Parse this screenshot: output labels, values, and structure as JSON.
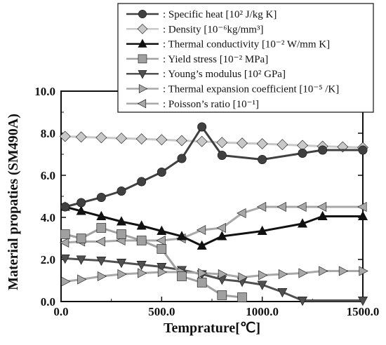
{
  "chart_data": {
    "type": "line",
    "xlabel": "Temprature[℃]",
    "ylabel": "Material propaties (SM490A)",
    "xlim": [
      0,
      1500
    ],
    "ylim": [
      0,
      10
    ],
    "x_ticks": [
      "0.0",
      "500.0",
      "1000.0",
      "1500.0"
    ],
    "y_ticks": [
      "0.0",
      "2.0",
      "4.0",
      "6.0",
      "8.0",
      "10.0"
    ],
    "grid": false,
    "legend_position": "top-right",
    "series": [
      {
        "name": ": Specific heat [10² J/kg K]",
        "marker": "circle",
        "color": "#404040",
        "x": [
          20,
          100,
          200,
          300,
          400,
          500,
          600,
          700,
          800,
          1000,
          1200,
          1300,
          1500
        ],
        "y": [
          4.5,
          4.7,
          4.95,
          5.25,
          5.7,
          6.15,
          6.8,
          8.3,
          6.95,
          6.75,
          7.05,
          7.2,
          7.2
        ]
      },
      {
        "name": ": Density [10⁻⁶kg/mm³]",
        "marker": "diamond",
        "color": "#c8c8c8",
        "x": [
          20,
          100,
          200,
          300,
          400,
          500,
          600,
          700,
          800,
          900,
          1000,
          1100,
          1200,
          1300,
          1400,
          1500
        ],
        "y": [
          7.85,
          7.82,
          7.79,
          7.76,
          7.73,
          7.69,
          7.65,
          7.61,
          7.56,
          7.53,
          7.5,
          7.46,
          7.42,
          7.38,
          7.35,
          7.32
        ]
      },
      {
        "name": ": Thermal conductivity [10⁻² W/mm K]",
        "marker": "triangle-up",
        "color": "#111111",
        "x": [
          20,
          100,
          200,
          300,
          400,
          500,
          600,
          700,
          800,
          1000,
          1200,
          1300,
          1500
        ],
        "y": [
          4.5,
          4.3,
          4.05,
          3.8,
          3.6,
          3.35,
          3.1,
          2.65,
          3.1,
          3.35,
          3.7,
          4.05,
          4.05
        ]
      },
      {
        "name": ": Yield stress [10⁻² MPa]",
        "marker": "square",
        "color": "#a0a0a0",
        "x": [
          20,
          100,
          200,
          300,
          400,
          500,
          600,
          700,
          800,
          900
        ],
        "y": [
          3.2,
          3.0,
          3.5,
          3.2,
          2.9,
          2.5,
          1.2,
          0.9,
          0.3,
          0.2
        ]
      },
      {
        "name": ": Young’s modulus [10² GPa]",
        "marker": "triangle-down",
        "color": "#505050",
        "x": [
          20,
          100,
          200,
          300,
          400,
          500,
          600,
          700,
          800,
          900,
          1000,
          1100,
          1200,
          1500
        ],
        "y": [
          2.05,
          2.0,
          1.95,
          1.85,
          1.75,
          1.65,
          1.5,
          1.3,
          1.05,
          0.95,
          0.8,
          0.45,
          0.05,
          0.05
        ]
      },
      {
        "name": ": Thermal expansion coefficient [10⁻⁵ /K]",
        "marker": "triangle-right",
        "color": "#a8a8a8",
        "x": [
          20,
          100,
          200,
          300,
          400,
          500,
          600,
          700,
          800,
          900,
          1000,
          1100,
          1200,
          1300,
          1400,
          1500
        ],
        "y": [
          0.95,
          1.05,
          1.2,
          1.3,
          1.35,
          1.4,
          1.4,
          1.35,
          1.3,
          1.15,
          1.25,
          1.3,
          1.35,
          1.45,
          1.45,
          1.45
        ]
      },
      {
        "name": ": Poisson’s ratio [10⁻¹]",
        "marker": "triangle-left",
        "color": "#a8a8a8",
        "x": [
          20,
          100,
          200,
          300,
          400,
          500,
          600,
          700,
          800,
          900,
          1000,
          1100,
          1200,
          1300,
          1500
        ],
        "y": [
          2.8,
          2.85,
          2.85,
          2.9,
          2.9,
          2.9,
          3.0,
          3.4,
          3.5,
          4.2,
          4.5,
          4.5,
          4.5,
          4.5,
          4.5
        ]
      }
    ]
  }
}
